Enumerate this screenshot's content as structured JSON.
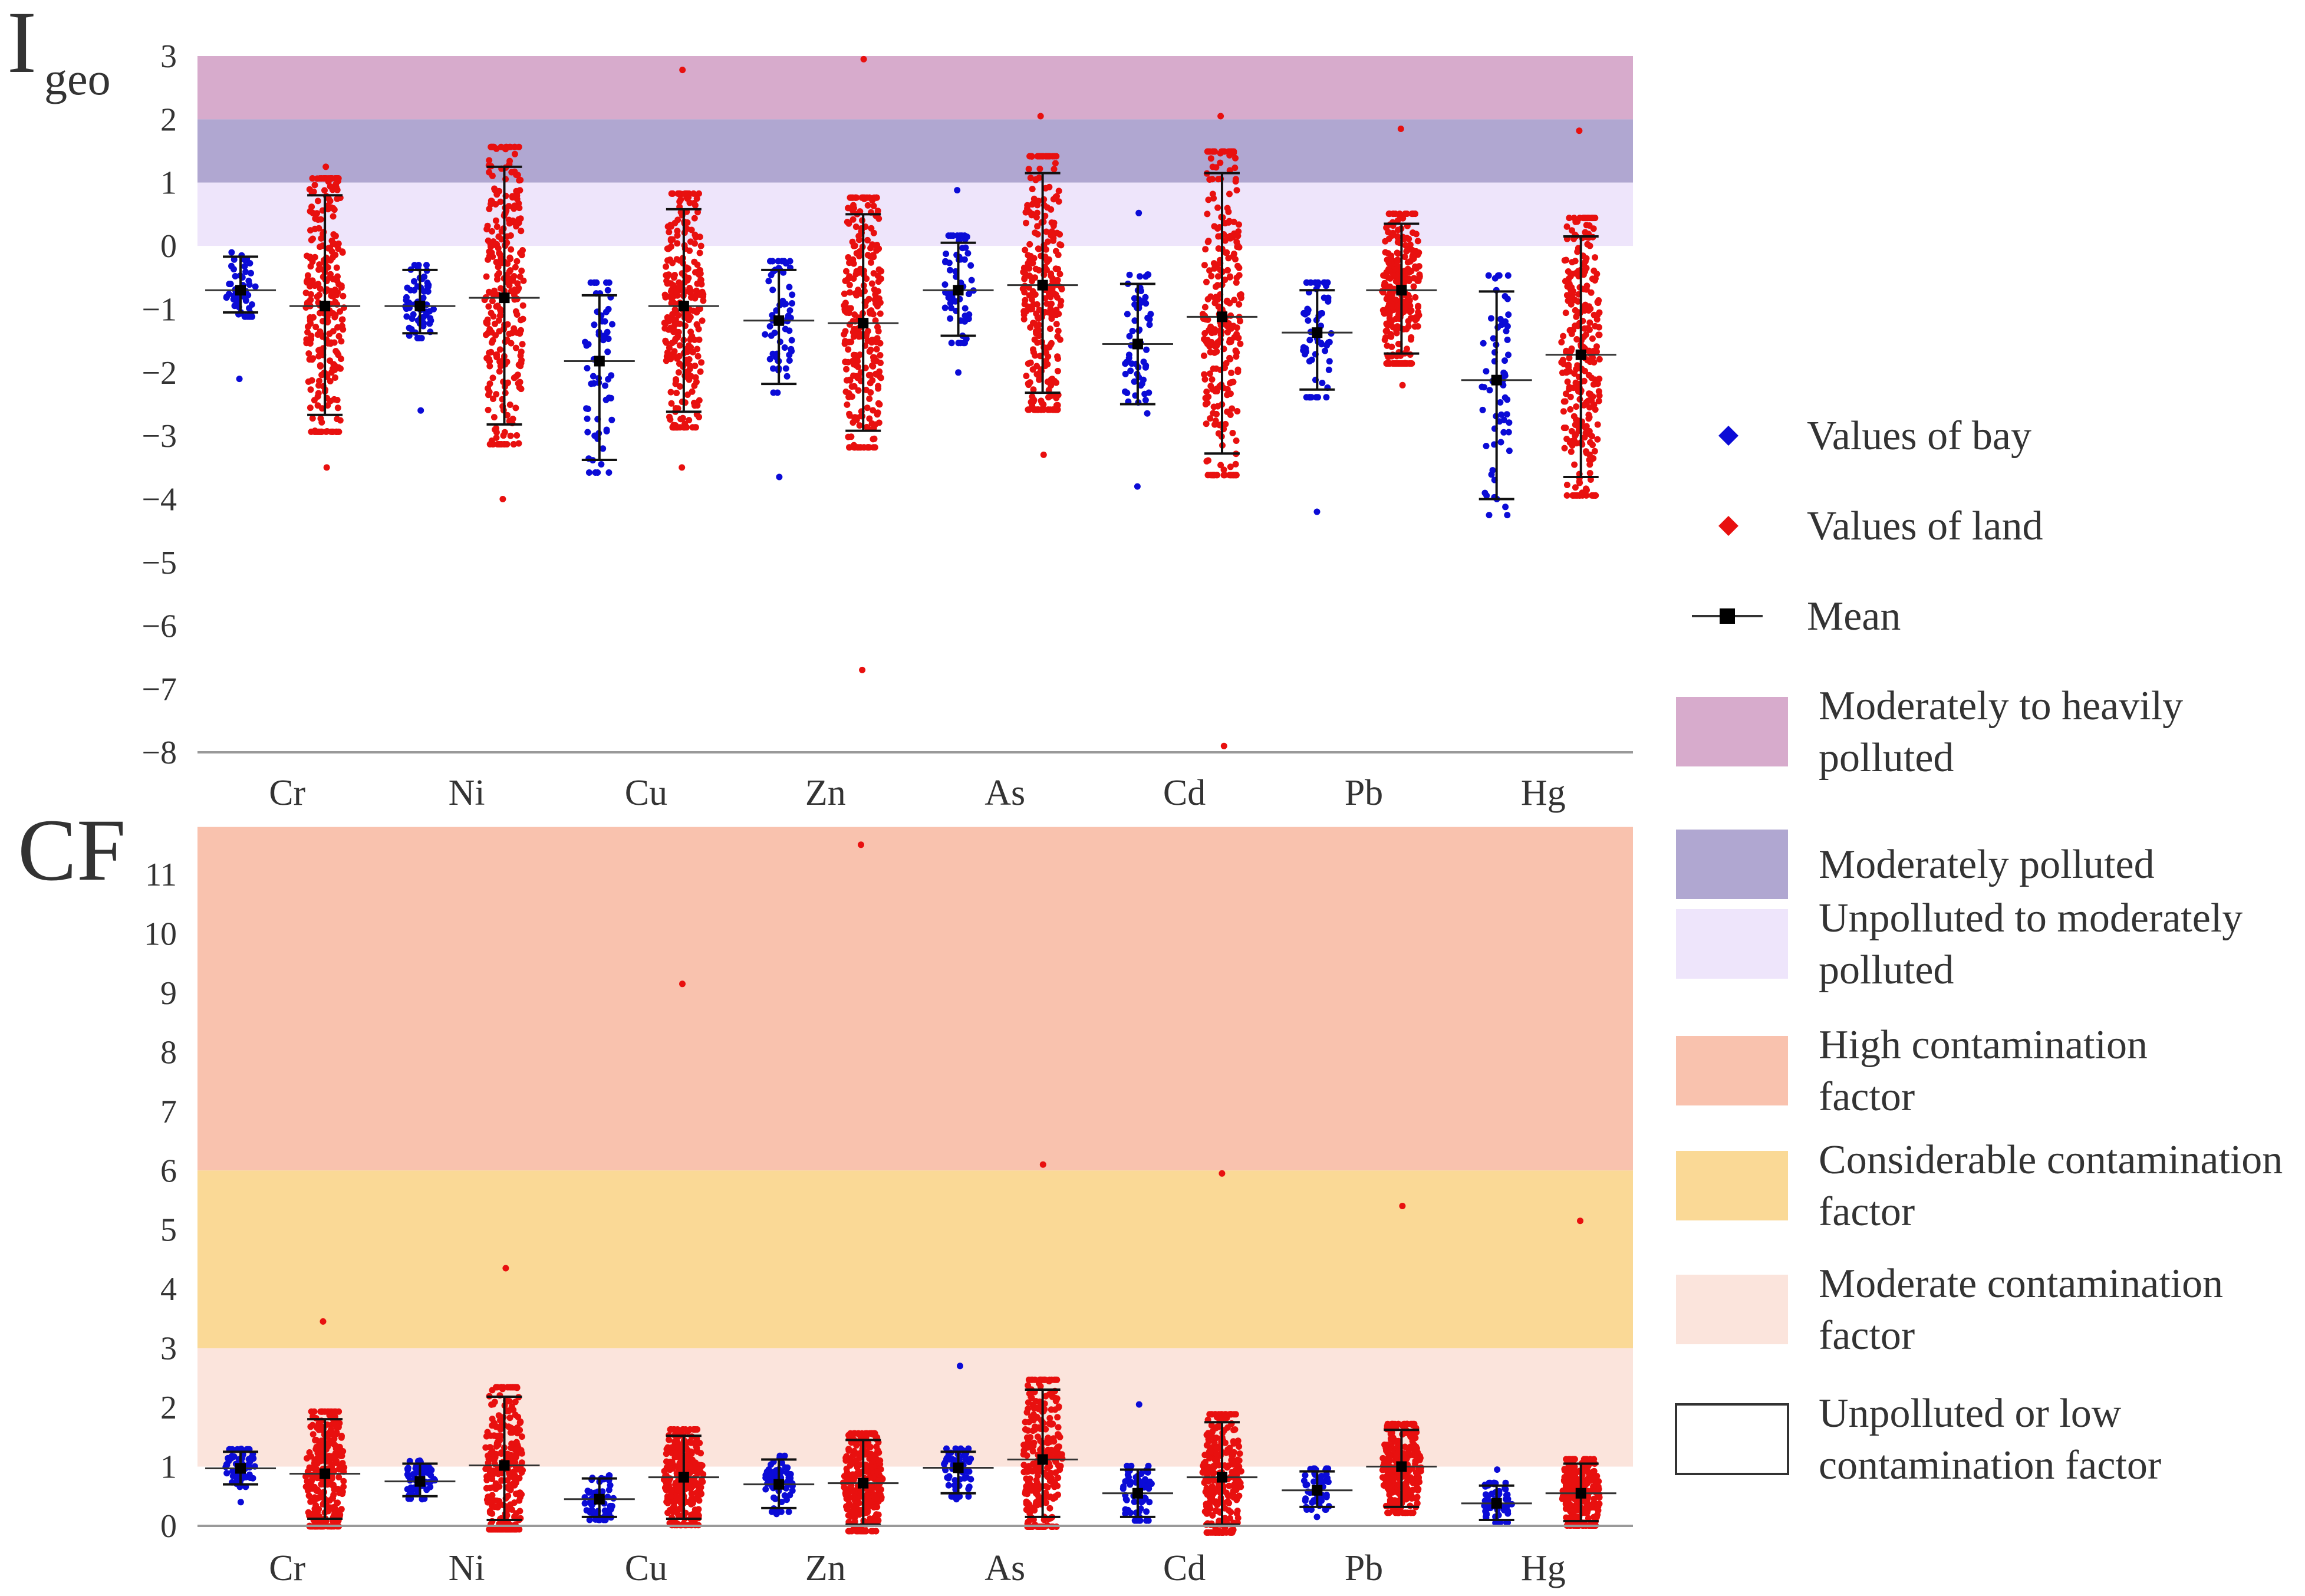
{
  "chart_data": [
    {
      "type": "scatter",
      "title": "I",
      "title_sub": "geo",
      "categories": [
        "Cr",
        "Ni",
        "Cu",
        "Zn",
        "As",
        "Cd",
        "Pb",
        "Hg"
      ],
      "ylim": [
        -8,
        3
      ],
      "yticks": [
        "3",
        "2",
        "1",
        "0",
        "−1",
        "−2",
        "−3",
        "−4",
        "−5",
        "−6",
        "−7",
        "−8"
      ],
      "bands": [
        {
          "key": "moderately_to_heavily",
          "from": 2,
          "to": 3,
          "color": "#d7abcc"
        },
        {
          "key": "moderately",
          "from": 1,
          "to": 2,
          "color": "#b0a7d1"
        },
        {
          "key": "unpolluted_to_moderately",
          "from": 0,
          "to": 1,
          "color": "#eee5fb"
        }
      ],
      "series": [
        {
          "name": "Values of bay",
          "color": "#0b0bd6",
          "stats": [
            {
              "mean": -0.7,
              "sd_low": -1.05,
              "sd_high": -0.17,
              "min": -2.1,
              "max": -0.15,
              "n": 60
            },
            {
              "mean": -0.95,
              "sd_low": -1.38,
              "sd_high": -0.38,
              "min": -2.6,
              "max": -0.35,
              "n": 60
            },
            {
              "mean": -1.82,
              "sd_low": -3.38,
              "sd_high": -0.78,
              "min": -3.45,
              "max": -0.75,
              "n": 60
            },
            {
              "mean": -1.18,
              "sd_low": -2.18,
              "sd_high": -0.38,
              "min": -3.65,
              "max": -0.35,
              "n": 60
            },
            {
              "mean": -0.7,
              "sd_low": -1.42,
              "sd_high": 0.05,
              "min": -2.0,
              "max": 0.88,
              "n": 60
            },
            {
              "mean": -1.55,
              "sd_low": -2.5,
              "sd_high": -0.6,
              "min": -3.8,
              "max": 0.52,
              "n": 60
            },
            {
              "mean": -1.37,
              "sd_low": -2.27,
              "sd_high": -0.7,
              "min": -4.2,
              "max": -0.68,
              "n": 60
            },
            {
              "mean": -2.12,
              "sd_low": -4.0,
              "sd_high": -0.72,
              "min": -4.0,
              "max": -0.7,
              "n": 60
            }
          ]
        },
        {
          "name": "Values of land",
          "color": "#e8100f",
          "stats": [
            {
              "mean": -0.95,
              "sd_low": -2.67,
              "sd_high": 0.8,
              "min": -3.5,
              "max": 1.25,
              "n": 280
            },
            {
              "mean": -0.82,
              "sd_low": -2.82,
              "sd_high": 1.25,
              "min": -4.0,
              "max": 1.55,
              "n": 280
            },
            {
              "mean": -0.95,
              "sd_low": -2.62,
              "sd_high": 0.58,
              "min": -3.5,
              "max": 2.78,
              "n": 280
            },
            {
              "mean": -1.22,
              "sd_low": -2.92,
              "sd_high": 0.5,
              "min": -6.7,
              "max": 2.95,
              "n": 280
            },
            {
              "mean": -0.62,
              "sd_low": -2.32,
              "sd_high": 1.15,
              "min": -3.3,
              "max": 2.05,
              "n": 280
            },
            {
              "mean": -1.12,
              "sd_low": -3.28,
              "sd_high": 1.15,
              "min": -7.9,
              "max": 2.05,
              "n": 280
            },
            {
              "mean": -0.7,
              "sd_low": -1.7,
              "sd_high": 0.35,
              "min": -2.2,
              "max": 1.85,
              "n": 280
            },
            {
              "mean": -1.72,
              "sd_low": -3.65,
              "sd_high": 0.15,
              "min": -3.9,
              "max": 1.82,
              "n": 280
            }
          ]
        }
      ]
    },
    {
      "type": "scatter",
      "title": "CF",
      "categories": [
        "Cr",
        "Ni",
        "Cu",
        "Zn",
        "As",
        "Cd",
        "Pb",
        "Hg"
      ],
      "ylim": [
        0,
        11.8
      ],
      "yticks": [
        "11",
        "10",
        "9",
        "8",
        "7",
        "6",
        "5",
        "4",
        "3",
        "2",
        "1",
        "0"
      ],
      "bands": [
        {
          "key": "high",
          "from": 6,
          "to": 11.8,
          "color": "#f9c2ae"
        },
        {
          "key": "considerable",
          "from": 3,
          "to": 6,
          "color": "#fad996"
        },
        {
          "key": "moderate",
          "from": 1,
          "to": 3,
          "color": "#fbe4dc"
        }
      ],
      "series": [
        {
          "name": "Values of bay",
          "color": "#0b0bd6",
          "stats": [
            {
              "mean": 0.97,
              "sd_low": 0.7,
              "sd_high": 1.25,
              "min": 0.4,
              "max": 1.3,
              "n": 60
            },
            {
              "mean": 0.75,
              "sd_low": 0.5,
              "sd_high": 1.05,
              "min": 0.45,
              "max": 1.1,
              "n": 60
            },
            {
              "mean": 0.45,
              "sd_low": 0.15,
              "sd_high": 0.8,
              "min": 0.15,
              "max": 0.8,
              "n": 60
            },
            {
              "mean": 0.7,
              "sd_low": 0.3,
              "sd_high": 1.12,
              "min": 0.2,
              "max": 1.15,
              "n": 60
            },
            {
              "mean": 0.98,
              "sd_low": 0.55,
              "sd_high": 1.25,
              "min": 0.45,
              "max": 2.7,
              "n": 60
            },
            {
              "mean": 0.55,
              "sd_low": 0.15,
              "sd_high": 0.95,
              "min": 0.15,
              "max": 2.05,
              "n": 60
            },
            {
              "mean": 0.6,
              "sd_low": 0.32,
              "sd_high": 0.92,
              "min": 0.15,
              "max": 0.95,
              "n": 60
            },
            {
              "mean": 0.38,
              "sd_low": 0.1,
              "sd_high": 0.68,
              "min": 0.05,
              "max": 0.95,
              "n": 60
            }
          ]
        },
        {
          "name": "Values of land",
          "color": "#e8100f",
          "stats": [
            {
              "mean": 0.88,
              "sd_low": 0.12,
              "sd_high": 1.8,
              "min": 0.12,
              "max": 3.45,
              "n": 280
            },
            {
              "mean": 1.02,
              "sd_low": 0.1,
              "sd_high": 2.18,
              "min": 0.1,
              "max": 4.35,
              "n": 280
            },
            {
              "mean": 0.82,
              "sd_low": 0.12,
              "sd_high": 1.52,
              "min": 0.12,
              "max": 9.15,
              "n": 280
            },
            {
              "mean": 0.72,
              "sd_low": 0.02,
              "sd_high": 1.45,
              "min": 0.02,
              "max": 11.5,
              "n": 280
            },
            {
              "mean": 1.12,
              "sd_low": 0.15,
              "sd_high": 2.3,
              "min": 0.15,
              "max": 6.1,
              "n": 280
            },
            {
              "mean": 0.82,
              "sd_low": 0.02,
              "sd_high": 1.75,
              "min": 0.02,
              "max": 5.95,
              "n": 280
            },
            {
              "mean": 1.0,
              "sd_low": 0.32,
              "sd_high": 1.62,
              "min": 0.32,
              "max": 5.4,
              "n": 280
            },
            {
              "mean": 0.55,
              "sd_low": 0.08,
              "sd_high": 1.05,
              "min": 0.05,
              "max": 5.15,
              "n": 280
            }
          ]
        }
      ]
    }
  ],
  "legend": {
    "bay": {
      "label": "Values of bay",
      "color": "#0b0bd6"
    },
    "land": {
      "label": "Values of land",
      "color": "#e8100f"
    },
    "mean": {
      "label": "Mean"
    },
    "bands": [
      {
        "lines": [
          "Moderately to heavily",
          "polluted"
        ],
        "color": "#d7abcc"
      },
      {
        "lines": [
          "Moderately polluted"
        ],
        "color": "#b0a7d1"
      },
      {
        "lines": [
          "Unpolluted to moderately",
          "polluted"
        ],
        "color": "#eee5fb"
      },
      {
        "lines": [
          "High contamination",
          "factor"
        ],
        "color": "#f9c2ae"
      },
      {
        "lines": [
          "Considerable contamination",
          "factor"
        ],
        "color": "#fad996"
      },
      {
        "lines": [
          "Moderate contamination",
          "factor"
        ],
        "color": "#fbe4dc"
      },
      {
        "lines": [
          "Unpolluted or low",
          "contamination factor"
        ],
        "color": "#ffffff"
      }
    ]
  }
}
